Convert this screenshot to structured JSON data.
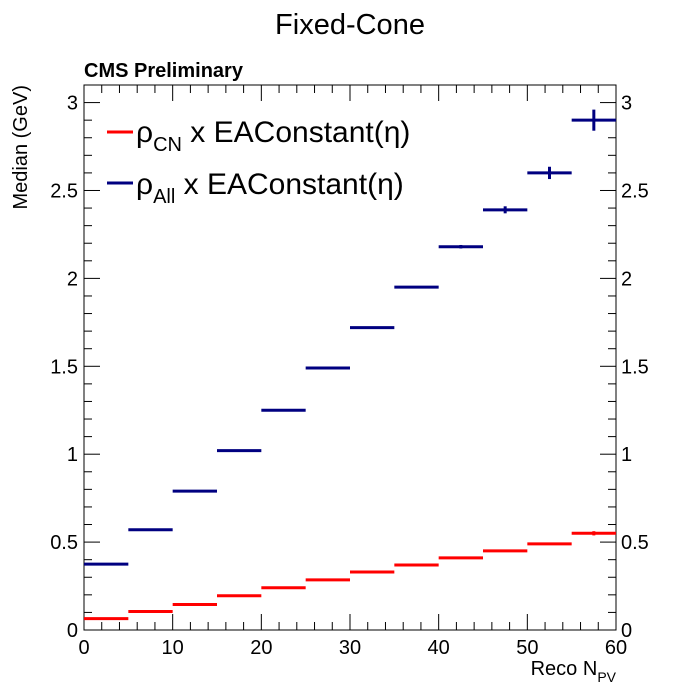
{
  "chart_data": {
    "type": "scatter",
    "title": "Fixed-Cone",
    "subtitle": "CMS Preliminary",
    "xlabel": {
      "main": "Reco N",
      "sub": "PV"
    },
    "ylabel": "Median (GeV)",
    "xlim": [
      0,
      60
    ],
    "ylim": [
      0,
      3.1
    ],
    "x_ticks": [
      0,
      10,
      20,
      30,
      40,
      50,
      60
    ],
    "x_tick_labels": [
      "0",
      "10",
      "20",
      "30",
      "40",
      "50",
      "60"
    ],
    "y_ticks": [
      0,
      0.5,
      1,
      1.5,
      2,
      2.5,
      3
    ],
    "y_tick_labels": [
      "0",
      "0.5",
      "1",
      "1.5",
      "2",
      "2.5",
      "3"
    ],
    "grid": false,
    "legend_position": "top-left",
    "bin_width": 5,
    "series": [
      {
        "name": "ρCN x EAConstant(η)",
        "legend": {
          "rho": "ρ",
          "sub": "CN",
          "rest": " x EAConstant(η)"
        },
        "color": "#ff0000",
        "x": [
          2.5,
          7.5,
          12.5,
          17.5,
          22.5,
          27.5,
          32.5,
          37.5,
          42.5,
          47.5,
          52.5,
          57.5
        ],
        "y": [
          0.065,
          0.105,
          0.145,
          0.195,
          0.24,
          0.285,
          0.33,
          0.37,
          0.41,
          0.45,
          0.49,
          0.55
        ],
        "err": [
          0,
          0,
          0,
          0,
          0,
          0,
          0,
          0,
          0,
          0,
          0.005,
          0.012
        ]
      },
      {
        "name": "ρAll x EAConstant(η)",
        "legend": {
          "rho": "ρ",
          "sub": "All",
          "rest": " x EAConstant(η)"
        },
        "color": "#000080",
        "x": [
          2.5,
          7.5,
          12.5,
          17.5,
          22.5,
          27.5,
          32.5,
          37.5,
          42.5,
          47.5,
          52.5,
          57.5
        ],
        "y": [
          0.375,
          0.57,
          0.79,
          1.02,
          1.25,
          1.49,
          1.72,
          1.95,
          2.18,
          2.39,
          2.6,
          2.9
        ],
        "err": [
          0,
          0,
          0,
          0,
          0,
          0,
          0,
          0,
          0.01,
          0.02,
          0.035,
          0.06
        ]
      }
    ]
  }
}
